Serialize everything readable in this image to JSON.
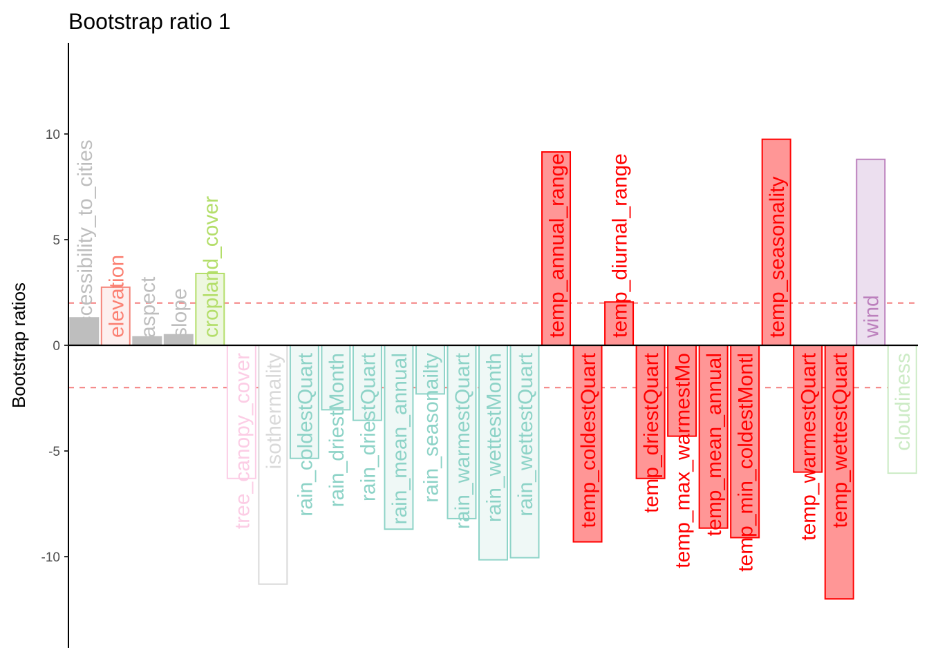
{
  "chart_data": {
    "type": "bar",
    "title": "Bootstrap ratio 1",
    "xlabel": "",
    "ylabel": "Bootstrap ratios",
    "ylim": [
      -14.1,
      14.1
    ],
    "yticks": [
      -10,
      -5,
      0,
      5,
      10
    ],
    "ytick_labels": [
      "-10",
      "-5",
      "0",
      "5",
      "10"
    ],
    "threshold_lines": [
      2,
      -2
    ],
    "threshold_color": "#f47f7f",
    "grid": false,
    "categories": [
      "accessibility_to_cities",
      "elevation",
      "aspect",
      "slope",
      "cropland_cover",
      "tree_canopy_cover",
      "isothermality",
      "rain_coldestQuart",
      "rain_driestMonth",
      "rain_driestQuart",
      "rain_mean_annual",
      "rain_seasonailty",
      "rain_warmestQuart",
      "rain_wettestMonth",
      "rain_wettestQuart",
      "temp_annual_range",
      "temp_coldestQuart",
      "temp_diurnal_range",
      "temp_driestQuart",
      "temp_max_warmestMo",
      "temp_mean_annual",
      "temp_min_coldestMontl",
      "temp_seasonality",
      "temp_warmestQuart",
      "temp_wettestQuart",
      "wind",
      "cloudiness"
    ],
    "values": [
      1.3,
      2.75,
      0.4,
      0.5,
      3.4,
      -6.3,
      -11.3,
      -5.35,
      -3.05,
      -3.55,
      -8.7,
      -2.3,
      -8.2,
      -10.15,
      -10.05,
      9.15,
      -9.3,
      2.05,
      -6.3,
      -4.3,
      -8.65,
      -9.1,
      9.75,
      -6.0,
      -12.0,
      8.8,
      -6.05
    ],
    "fill_colors": [
      "#bebebe",
      "#fdefee",
      "#bebebe",
      "#bebebe",
      "#eef7e0",
      "#ffffff",
      "#ffffff",
      "#eff8f6",
      "#eff8f6",
      "#eff8f6",
      "#eff8f6",
      "#eff8f6",
      "#eff8f6",
      "#eff8f6",
      "#eff8f6",
      "#ff9696",
      "#ff9696",
      "#ff9696",
      "#ff9696",
      "#ff9696",
      "#ff9696",
      "#ff9696",
      "#ff9696",
      "#ff9696",
      "#ff9696",
      "#ecdfef",
      "#ffffff"
    ],
    "edge_colors": [
      "#bebebe",
      "#f4857a",
      "#bebebe",
      "#bebebe",
      "#b3de69",
      "#fccde5",
      "#d9d9d9",
      "#8dd3c7",
      "#8dd3c7",
      "#8dd3c7",
      "#8dd3c7",
      "#8dd3c7",
      "#8dd3c7",
      "#8dd3c7",
      "#8dd3c7",
      "#ff0000",
      "#ff0000",
      "#ff0000",
      "#ff0000",
      "#ff0000",
      "#ff0000",
      "#ff0000",
      "#ff0000",
      "#ff0000",
      "#ff0000",
      "#bc80bd",
      "#ccebc5"
    ],
    "label_colors": [
      "#bebebe",
      "#fb8072",
      "#bebebe",
      "#bebebe",
      "#b3de69",
      "#fccde5",
      "#d9d9d9",
      "#8dd3c7",
      "#8dd3c7",
      "#8dd3c7",
      "#8dd3c7",
      "#8dd3c7",
      "#8dd3c7",
      "#8dd3c7",
      "#8dd3c7",
      "#ff0000",
      "#ff0000",
      "#ff0000",
      "#ff0000",
      "#ff0000",
      "#ff0000",
      "#ff0000",
      "#ff0000",
      "#ff0000",
      "#ff0000",
      "#bc80bd",
      "#ccebc5"
    ]
  }
}
